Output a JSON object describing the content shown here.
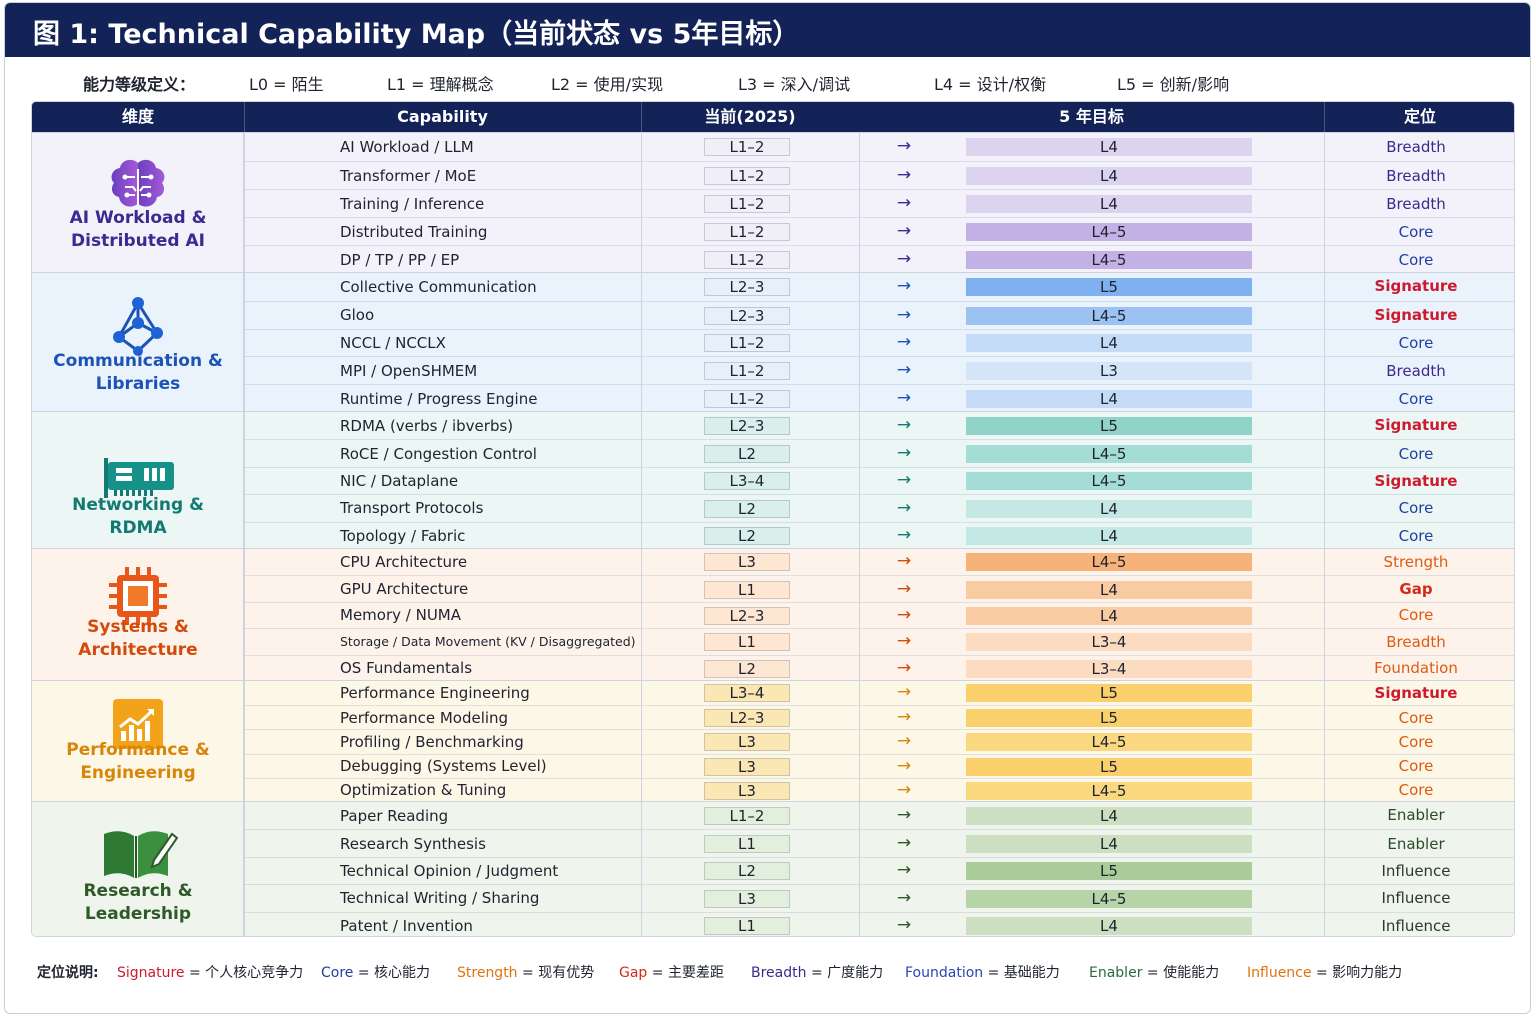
{
  "title": "图 1:  Technical Capability Map（当前状态 vs 5年目标）",
  "levels": {
    "label": "能力等级定义：",
    "items": [
      "L0 = 陌生",
      "L1 = 理解概念",
      "L2 = 使用/实现",
      "L3 = 深入/调试",
      "L4 = 设计/权衡",
      "L5 = 创新/影响"
    ]
  },
  "headers": {
    "dimension": "维度",
    "capability": "Capability",
    "current": "当前(2025)",
    "target": "5 年目标",
    "position": "定位"
  },
  "colors": {
    "navy": "#132257",
    "signature": "#cc1a2e",
    "core": "#1f3fa3",
    "breadth": "#3a2a8c",
    "strength": "#e05a10",
    "gap": "#d42a18",
    "foundation": "#2a46b0",
    "enabler": "#2a4a2a",
    "influence": "#2a3a2a"
  },
  "groups": [
    {
      "name": "AI Workload & Distributed AI",
      "icon": "brain-circuit-icon",
      "bg": "#f3f1fa",
      "name_color": "#3b2a91",
      "cur_bg": "#f0eef7",
      "rows": [
        {
          "cap": "AI Workload / LLM",
          "cur": "L1–2",
          "tgt": "L4",
          "tgt_bg": "#dcd3ef",
          "pos": "Breadth",
          "pos_color": "#3a2a8c"
        },
        {
          "cap": "Transformer / MoE",
          "cur": "L1–2",
          "tgt": "L4",
          "tgt_bg": "#dcd3ef",
          "pos": "Breadth",
          "pos_color": "#3a2a8c"
        },
        {
          "cap": "Training / Inference",
          "cur": "L1–2",
          "tgt": "L4",
          "tgt_bg": "#dcd3ef",
          "pos": "Breadth",
          "pos_color": "#3a2a8c"
        },
        {
          "cap": "Distributed Training",
          "cur": "L1–2",
          "tgt": "L4–5",
          "tgt_bg": "#c3b1e6",
          "pos": "Core",
          "pos_color": "#1f3fa3"
        },
        {
          "cap": "DP / TP / PP / EP",
          "cur": "L1–2",
          "tgt": "L4–5",
          "tgt_bg": "#c3b1e6",
          "pos": "Core",
          "pos_color": "#1f3fa3"
        }
      ]
    },
    {
      "name": "Communication & Libraries",
      "icon": "network-graph-icon",
      "bg": "#eaf2fc",
      "name_color": "#1c54b5",
      "cur_bg": "#e6f0fb",
      "rows": [
        {
          "cap": "Collective Communication",
          "cur": "L2–3",
          "tgt": "L5",
          "tgt_bg": "#7fb0ef",
          "pos": "Signature",
          "pos_color": "#cc1a2e"
        },
        {
          "cap": "Gloo",
          "cur": "L2–3",
          "tgt": "L4–5",
          "tgt_bg": "#9cc2f2",
          "pos": "Signature",
          "pos_color": "#cc1a2e"
        },
        {
          "cap": "NCCL / NCCLX",
          "cur": "L1–2",
          "tgt": "L4",
          "tgt_bg": "#c3dbf7",
          "pos": "Core",
          "pos_color": "#1f3fa3"
        },
        {
          "cap": "MPI / OpenSHMEM",
          "cur": "L1–2",
          "tgt": "L3",
          "tgt_bg": "#d4e5f9",
          "pos": "Breadth",
          "pos_color": "#3a2a8c"
        },
        {
          "cap": "Runtime / Progress Engine",
          "cur": "L1–2",
          "tgt": "L4",
          "tgt_bg": "#c3dbf7",
          "pos": "Core",
          "pos_color": "#1f3fa3"
        }
      ]
    },
    {
      "name": "Networking & RDMA",
      "icon": "network-card-icon",
      "bg": "#ebf6f5",
      "name_color": "#137a72",
      "cur_bg": "#d9efec",
      "rows": [
        {
          "cap": "RDMA (verbs / ibverbs)",
          "cur": "L2–3",
          "tgt": "L5",
          "tgt_bg": "#8fd3c9",
          "pos": "Signature",
          "pos_color": "#cc1a2e"
        },
        {
          "cap": "RoCE / Congestion Control",
          "cur": "L2",
          "tgt": "L4–5",
          "tgt_bg": "#a4ddd5",
          "pos": "Core",
          "pos_color": "#1f3fa3"
        },
        {
          "cap": "NIC / Dataplane",
          "cur": "L3–4",
          "tgt": "L4–5",
          "tgt_bg": "#a4ddd5",
          "pos": "Signature",
          "pos_color": "#cc1a2e"
        },
        {
          "cap": "Transport Protocols",
          "cur": "L2",
          "tgt": "L4",
          "tgt_bg": "#c4e9e4",
          "pos": "Core",
          "pos_color": "#1f3fa3"
        },
        {
          "cap": "Topology / Fabric",
          "cur": "L2",
          "tgt": "L4",
          "tgt_bg": "#c4e9e4",
          "pos": "Core",
          "pos_color": "#1f3fa3"
        }
      ]
    },
    {
      "name": "Systems & Architecture",
      "icon": "cpu-chip-icon",
      "bg": "#fdf3ea",
      "name_color": "#d24a0c",
      "cur_bg": "#fde6d2",
      "rows": [
        {
          "cap": "CPU Architecture",
          "cur": "L3",
          "tgt": "L4–5",
          "tgt_bg": "#f7b27a",
          "pos": "Strength",
          "pos_color": "#e05a10"
        },
        {
          "cap": "GPU Architecture",
          "cur": "L1",
          "tgt": "L4",
          "tgt_bg": "#f9cba3",
          "pos": "Gap",
          "pos_color": "#d42a18"
        },
        {
          "cap": "Memory / NUMA",
          "cur": "L2–3",
          "tgt": "L4",
          "tgt_bg": "#f9cba3",
          "pos": "Core",
          "pos_color": "#e05a10"
        },
        {
          "cap": "Storage / Data Movement (KV / Disaggregated)",
          "cur": "L1",
          "tgt": "L3–4",
          "tgt_bg": "#fbdcc0",
          "pos": "Breadth",
          "pos_color": "#e05a10",
          "small": true
        },
        {
          "cap": "OS Fundamentals",
          "cur": "L2",
          "tgt": "L3–4",
          "tgt_bg": "#fbdcc0",
          "pos": "Foundation",
          "pos_color": "#e05a10"
        }
      ]
    },
    {
      "name": "Performance & Engineering",
      "icon": "growth-chart-icon",
      "bg": "#fdf7e8",
      "name_color": "#d8860a",
      "cur_bg": "#fbe7b4",
      "rows": [
        {
          "cap": "Performance Engineering",
          "cur": "L3–4",
          "tgt": "L5",
          "tgt_bg": "#f9d06b",
          "pos": "Signature",
          "pos_color": "#cc1a2e"
        },
        {
          "cap": "Performance Modeling",
          "cur": "L2–3",
          "tgt": "L5",
          "tgt_bg": "#f9d06b",
          "pos": "Core",
          "pos_color": "#e05a10"
        },
        {
          "cap": "Profiling / Benchmarking",
          "cur": "L3",
          "tgt": "L4–5",
          "tgt_bg": "#f9d87f",
          "pos": "Core",
          "pos_color": "#e05a10"
        },
        {
          "cap": "Debugging (Systems Level)",
          "cur": "L3",
          "tgt": "L5",
          "tgt_bg": "#f9d06b",
          "pos": "Core",
          "pos_color": "#e05a10"
        },
        {
          "cap": "Optimization & Tuning",
          "cur": "L3",
          "tgt": "L4–5",
          "tgt_bg": "#f9d87f",
          "pos": "Core",
          "pos_color": "#e05a10"
        }
      ]
    },
    {
      "name": "Research & Leadership",
      "icon": "book-pen-icon",
      "bg": "#eff5ec",
      "name_color": "#2e5a2a",
      "cur_bg": "#e3efdd",
      "rows": [
        {
          "cap": "Paper Reading",
          "cur": "L1–2",
          "tgt": "L4",
          "tgt_bg": "#cce0c1",
          "pos": "Enabler",
          "pos_color": "#2a4a2a"
        },
        {
          "cap": "Research Synthesis",
          "cur": "L1",
          "tgt": "L4",
          "tgt_bg": "#cce0c1",
          "pos": "Enabler",
          "pos_color": "#2a4a2a"
        },
        {
          "cap": "Technical Opinion / Judgment",
          "cur": "L2",
          "tgt": "L5",
          "tgt_bg": "#a9cc98",
          "pos": "Influence",
          "pos_color": "#2a3a2a"
        },
        {
          "cap": "Technical Writing / Sharing",
          "cur": "L3",
          "tgt": "L4–5",
          "tgt_bg": "#b6d4a7",
          "pos": "Influence",
          "pos_color": "#2a3a2a"
        },
        {
          "cap": "Patent / Invention",
          "cur": "L1",
          "tgt": "L4",
          "tgt_bg": "#cce0c1",
          "pos": "Influence",
          "pos_color": "#2a3a2a"
        }
      ]
    }
  ],
  "arrow": "→",
  "legend": {
    "title": "定位说明:",
    "items": [
      {
        "key": "Signature",
        "text": " = 个人核心竞争力",
        "color": "#cc1a2e"
      },
      {
        "key": "Core",
        "text": " = 核心能力",
        "color": "#1f3fa3"
      },
      {
        "key": "Strength",
        "text": " = 现有优势",
        "color": "#e0720f"
      },
      {
        "key": "Gap",
        "text": " = 主要差距",
        "color": "#d42a18"
      },
      {
        "key": "Breadth",
        "text": " = 广度能力",
        "color": "#3a2a8c"
      },
      {
        "key": "Foundation",
        "text": " = 基础能力",
        "color": "#2a46b0"
      },
      {
        "key": "Enabler",
        "text": " = 使能能力",
        "color": "#2a6a3a"
      },
      {
        "key": "Influence",
        "text": " = 影响力能力",
        "color": "#e0720f"
      }
    ]
  }
}
